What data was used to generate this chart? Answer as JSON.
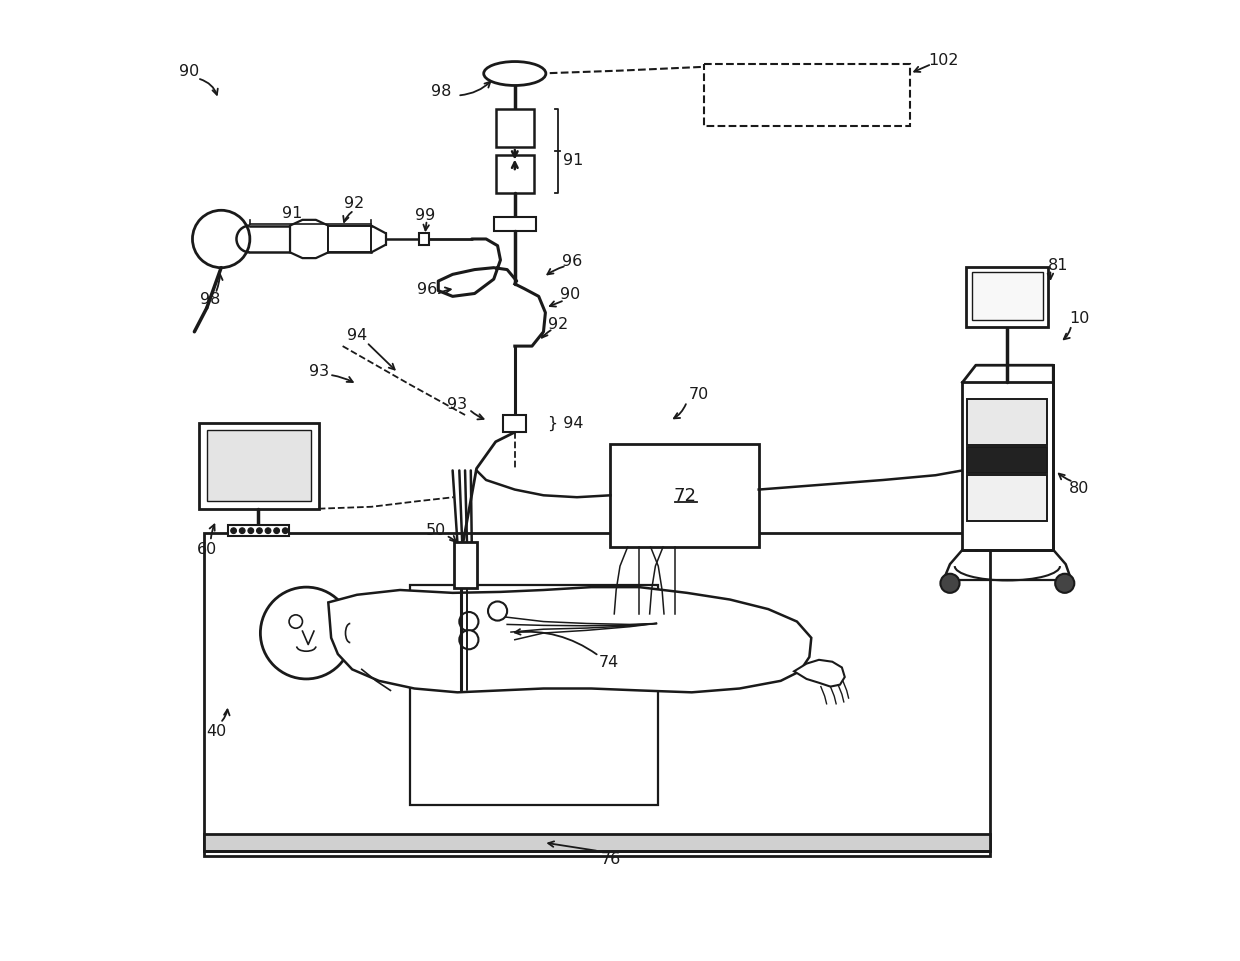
{
  "bg_color": "#ffffff",
  "lc": "#1a1a1a",
  "fig_width": 12.4,
  "fig_height": 9.62
}
